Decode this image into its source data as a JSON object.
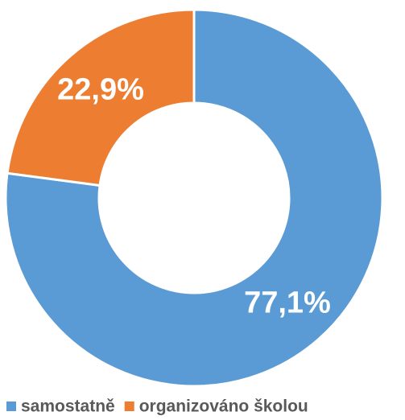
{
  "chart_data": {
    "type": "pie",
    "categories": [
      "samostatně",
      "organizováno školou"
    ],
    "values": [
      77.1,
      22.9
    ],
    "value_labels": [
      "77,1%",
      "22,9%"
    ],
    "colors": [
      "#5b9bd5",
      "#ed7d31"
    ],
    "donut": true
  }
}
